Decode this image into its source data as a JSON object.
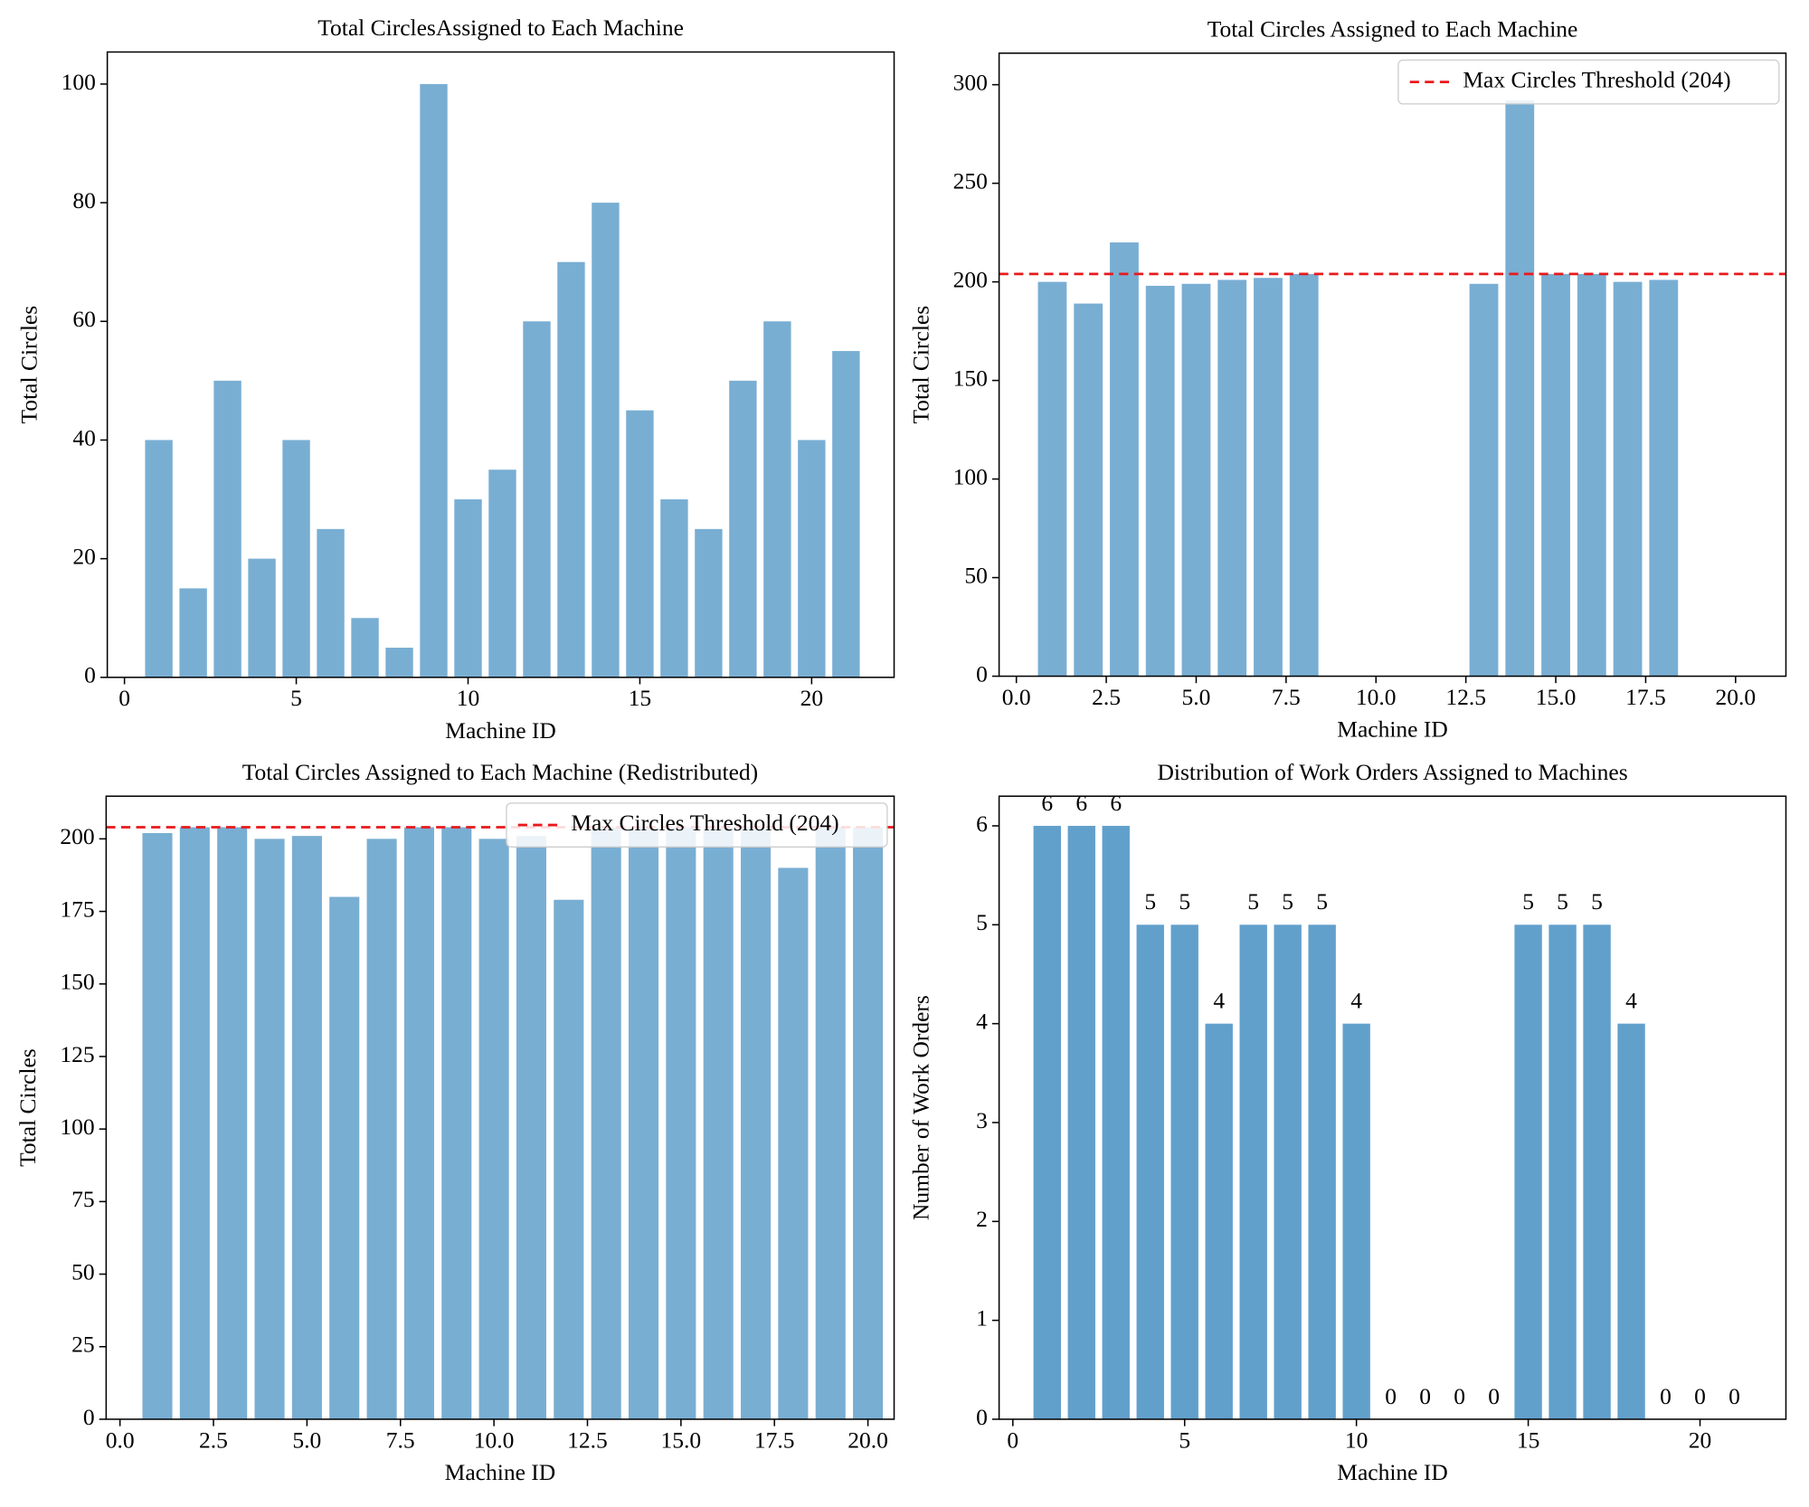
{
  "chart_data": [
    {
      "type": "bar",
      "title": "Total CirclesAssigned to Each Machine",
      "xlabel": "Machine ID",
      "ylabel": "Total Circles",
      "x": [
        1,
        2,
        3,
        4,
        5,
        6,
        7,
        8,
        9,
        10,
        11,
        12,
        13,
        14,
        15,
        16,
        17,
        18,
        19,
        20,
        21
      ],
      "values": [
        40,
        15,
        50,
        20,
        40,
        25,
        10,
        5,
        100,
        30,
        35,
        60,
        70,
        80,
        45,
        30,
        25,
        50,
        60,
        40,
        55
      ],
      "color": "#79aed3",
      "xlim": [
        -0.5,
        22.4
      ],
      "ylim": [
        0,
        105.4
      ],
      "xticks": [
        0,
        5,
        10,
        15,
        20
      ],
      "yticks": [
        0,
        20,
        40,
        60,
        80,
        100
      ]
    },
    {
      "type": "bar",
      "title": "Total Circles Assigned to Each Machine",
      "xlabel": "Machine ID",
      "ylabel": "Total Circles",
      "x": [
        1,
        2,
        3,
        4,
        5,
        6,
        7,
        8,
        13,
        14,
        15,
        16,
        17,
        18
      ],
      "values": [
        200,
        189,
        220,
        198,
        199,
        201,
        202,
        204,
        199,
        292,
        204,
        204,
        200,
        201
      ],
      "color": "#79aed3",
      "xlim": [
        -0.48,
        21.4
      ],
      "ylim": [
        0,
        316
      ],
      "xticks": [
        {
          "value": 0,
          "label": "0.0"
        },
        {
          "value": 2.5,
          "label": "2.5"
        },
        {
          "value": 5,
          "label": "5.0"
        },
        {
          "value": 7.5,
          "label": "7.5"
        },
        {
          "value": 10,
          "label": "10.0"
        },
        {
          "value": 12.5,
          "label": "12.5"
        },
        {
          "value": 15,
          "label": "15.0"
        },
        {
          "value": 17.5,
          "label": "17.5"
        },
        {
          "value": 20,
          "label": "20.0"
        }
      ],
      "yticks": [
        0,
        50,
        100,
        150,
        200,
        250,
        300
      ],
      "threshold": {
        "value": 204,
        "label": "Max Circles Threshold (204)",
        "color": "#e8191c"
      },
      "legend": "upper right"
    },
    {
      "type": "bar",
      "title": "Total Circles Assigned to Each Machine (Redistributed)",
      "xlabel": "Machine ID",
      "ylabel": "Total Circles",
      "x": [
        1,
        2,
        3,
        4,
        5,
        6,
        7,
        8,
        9,
        10,
        11,
        12,
        13,
        14,
        15,
        16,
        17,
        18,
        19,
        20
      ],
      "values": [
        202,
        204,
        204,
        200,
        201,
        180,
        200,
        204,
        204,
        200,
        201,
        179,
        204,
        204,
        204,
        204,
        204,
        190,
        204,
        204
      ],
      "color": "#79aed3",
      "xlim": [
        -0.37,
        20.7
      ],
      "ylim": [
        0,
        214.7
      ],
      "xticks": [
        {
          "value": 0,
          "label": "0.0"
        },
        {
          "value": 2.5,
          "label": "2.5"
        },
        {
          "value": 5,
          "label": "5.0"
        },
        {
          "value": 7.5,
          "label": "7.5"
        },
        {
          "value": 10,
          "label": "10.0"
        },
        {
          "value": 12.5,
          "label": "12.5"
        },
        {
          "value": 15,
          "label": "15.0"
        },
        {
          "value": 17.5,
          "label": "17.5"
        },
        {
          "value": 20,
          "label": "20.0"
        }
      ],
      "yticks": [
        0,
        25,
        50,
        75,
        100,
        125,
        150,
        175,
        200
      ],
      "threshold": {
        "value": 204,
        "label": "Max Circles Threshold (204)",
        "color": "#e8191c"
      },
      "legend": "upper right"
    },
    {
      "type": "bar",
      "title": "Distribution of Work Orders Assigned to Machines",
      "xlabel": "Machine ID",
      "ylabel": "Number of Work Orders",
      "x": [
        1,
        2,
        3,
        4,
        5,
        6,
        7,
        8,
        9,
        10,
        11,
        12,
        13,
        14,
        15,
        16,
        17,
        18,
        19,
        20,
        21
      ],
      "values": [
        6,
        6,
        6,
        5,
        5,
        4,
        5,
        5,
        5,
        4,
        0,
        0,
        0,
        0,
        5,
        5,
        5,
        4,
        0,
        0,
        0
      ],
      "color": "#62a0cc",
      "xlim": [
        -0.4,
        22.5
      ],
      "ylim": [
        0,
        6.3
      ],
      "xticks": [
        0,
        5,
        10,
        15,
        20
      ],
      "yticks": [
        0,
        1,
        2,
        3,
        4,
        5,
        6
      ],
      "data_labels": true
    }
  ]
}
